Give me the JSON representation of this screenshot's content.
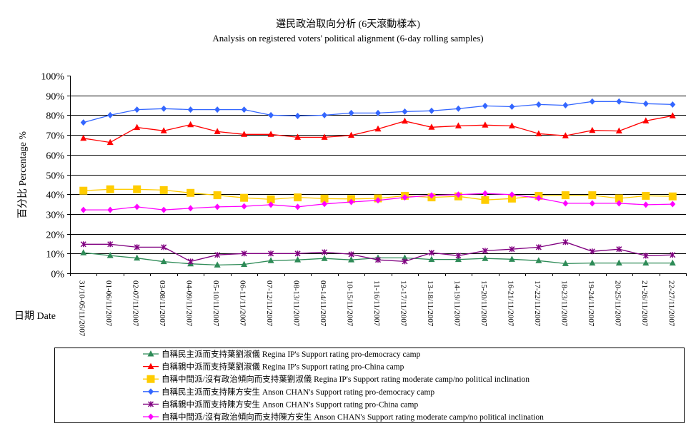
{
  "chart_data": {
    "type": "line",
    "title": "選民政治取向分析 (6天滾動樣本)",
    "subtitle": "Analysis on registered voters' political alignment (6-day rolling samples)",
    "ylabel": "百分比 Percentage %",
    "xlabel": "日期 Date",
    "ylim": [
      0,
      100
    ],
    "yticks": [
      "0%",
      "10%",
      "20%",
      "30%",
      "40%",
      "50%",
      "60%",
      "70%",
      "80%",
      "90%",
      "100%"
    ],
    "grid": true,
    "legend_position": "bottom",
    "categories": [
      "31/10-05/11/2007",
      "01-06/11/2007",
      "02-07/11/2007",
      "03-08/11/2007",
      "04-09/11/2007",
      "05-10/11/2007",
      "06-11/11/2007",
      "07-12/11/2007",
      "08-13/11/2007",
      "09-14/11/2007",
      "10-15/11/2007",
      "11-16/11/2007",
      "12-17/11/2007",
      "13-18/11/2007",
      "14-19/11/2007",
      "15-20/11/2007",
      "16-21/11/2007",
      "17-22/11/2007",
      "18-23/11/2007",
      "19-24/11/2007",
      "20-25/11/2007",
      "21-26/11/2007",
      "22-27/11/2007"
    ],
    "series": [
      {
        "name": "自稱民主派而支持葉劉淑儀 Regina IP's Support rating pro-democracy camp",
        "color": "#2e8b57",
        "marker": "triangle",
        "values": [
          10.4,
          9.0,
          7.7,
          5.9,
          4.8,
          4.2,
          4.5,
          6.4,
          6.8,
          7.5,
          6.8,
          7.8,
          7.8,
          7.0,
          7.0,
          7.5,
          7.1,
          6.4,
          4.9,
          5.2,
          5.2,
          5.2,
          5.2
        ]
      },
      {
        "name": "自稱親中派而支持葉劉淑儀 Regina IP's Support rating pro-China camp",
        "color": "#ff0000",
        "marker": "triangle",
        "values": [
          68.3,
          66.2,
          73.8,
          72.1,
          75.2,
          71.7,
          70.3,
          70.3,
          68.8,
          68.8,
          69.8,
          73.0,
          77.0,
          73.9,
          74.6,
          75.0,
          74.6,
          70.6,
          69.6,
          72.3,
          72.0,
          77.1,
          79.7
        ]
      },
      {
        "name": "自稱中間派/沒有政治傾向而支持葉劉淑儀  Regina IP's Support rating moderate camp/no political inclination",
        "color": "#ffcc00",
        "marker": "square",
        "values": [
          41.8,
          42.5,
          42.5,
          42.1,
          40.7,
          39.5,
          38.2,
          37.4,
          38.4,
          37.8,
          37.6,
          37.9,
          39.2,
          38.4,
          38.9,
          37.1,
          37.8,
          39.2,
          39.5,
          39.5,
          37.9,
          39.2,
          38.9
        ]
      },
      {
        "name": "自稱民主派而支持陳方安生 Anson CHAN's Support rating pro-democracy camp",
        "color": "#3366ff",
        "marker": "diamond",
        "values": [
          76.3,
          80.0,
          82.8,
          83.3,
          82.8,
          82.8,
          82.8,
          80.0,
          79.6,
          80.0,
          81.1,
          81.1,
          81.8,
          82.2,
          83.3,
          84.7,
          84.3,
          85.4,
          85.0,
          86.9,
          86.9,
          85.8,
          85.4
        ]
      },
      {
        "name": "自稱親中派而支持陳方安生 Anson CHAN's Support rating pro-China camp",
        "color": "#800080",
        "marker": "asterisk",
        "values": [
          14.7,
          14.7,
          13.2,
          13.2,
          6.0,
          9.3,
          10.0,
          10.0,
          10.0,
          10.7,
          9.6,
          6.8,
          6.0,
          10.4,
          8.9,
          11.4,
          12.2,
          13.2,
          15.8,
          11.1,
          12.2,
          8.9,
          9.3
        ]
      },
      {
        "name": "自稱中間派/沒有政治傾向而支持陳方安生  Anson CHAN's Support rating moderate camp/no political inclination",
        "color": "#ff00ff",
        "marker": "diamond",
        "values": [
          32.1,
          32.1,
          33.6,
          32.1,
          32.9,
          33.6,
          33.9,
          34.7,
          33.6,
          35.1,
          36.1,
          36.9,
          38.4,
          39.4,
          39.8,
          40.4,
          39.8,
          38.0,
          35.4,
          35.4,
          35.4,
          34.7,
          35.0
        ]
      }
    ]
  }
}
